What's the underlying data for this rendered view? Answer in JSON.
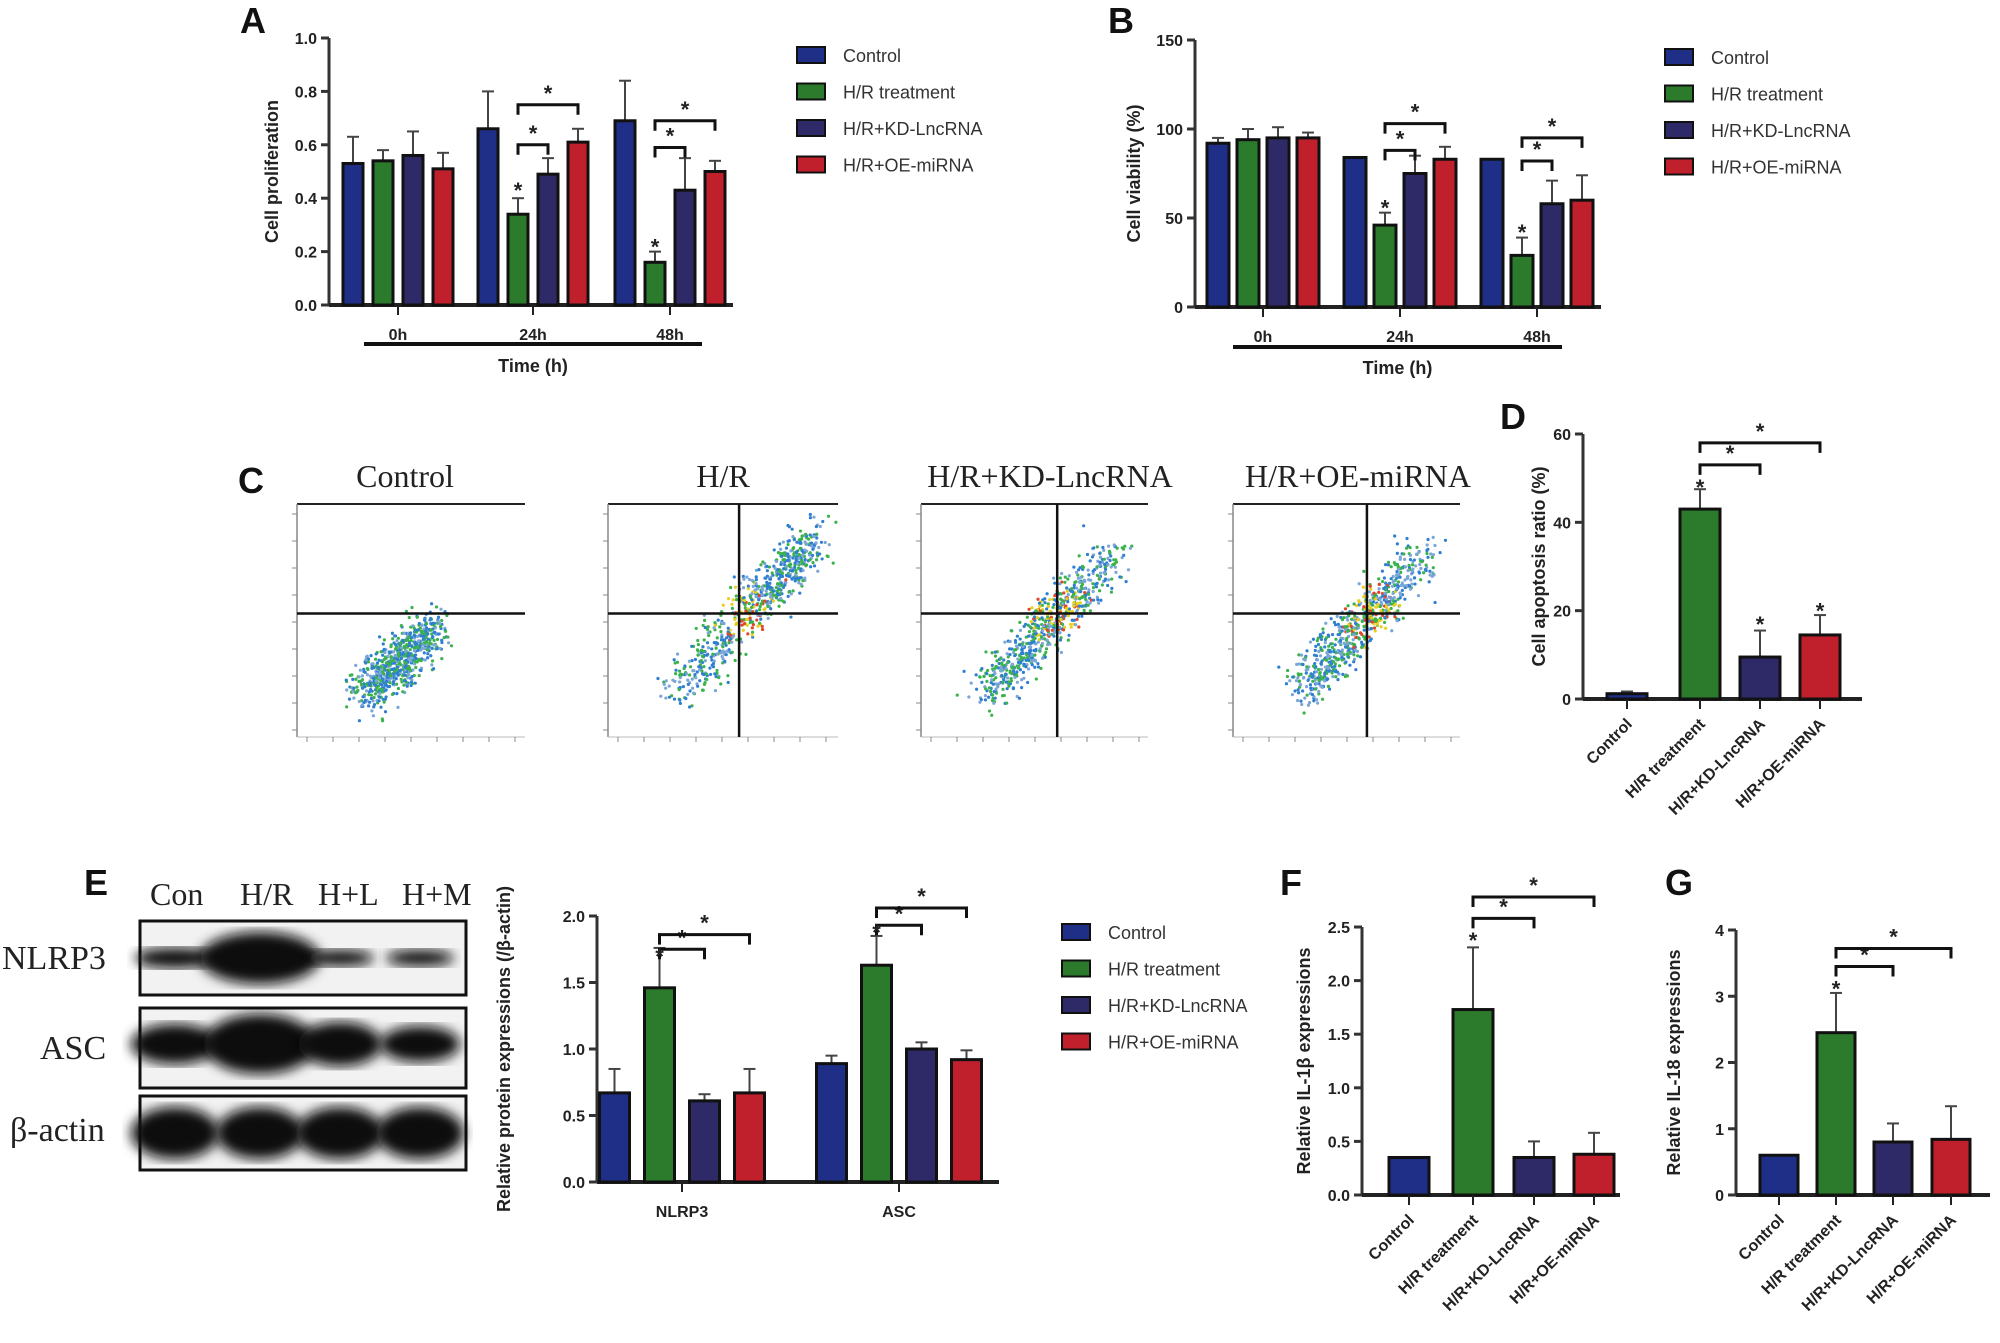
{
  "panel_labels": {
    "A": "A",
    "B": "B",
    "C": "C",
    "D": "D",
    "E": "E",
    "F": "F",
    "G": "G"
  },
  "colors": {
    "Control": "#1f2e86",
    "H/R treatment": "#2c7a2c",
    "H/R+KD-LncRNA": "#2e2a68",
    "H/R+OE-miRNA": "#c01f2c"
  },
  "flow": {
    "titles": [
      "Control",
      "H/R",
      "H/R+KD-LncRNA",
      "H/R+OE-miRNA"
    ]
  },
  "blot": {
    "lanes": [
      "Con",
      "H/R",
      "H+L",
      "H+M"
    ],
    "rows": [
      "NLRP3",
      "ASC",
      "β-actin"
    ]
  },
  "chart_data": [
    {
      "id": "A",
      "type": "bar",
      "categories": [
        "0h",
        "24h",
        "48h"
      ],
      "xlabel": "Time (h)",
      "ylabel": "Cell proliferation",
      "ylim": [
        0,
        1.0
      ],
      "yticks": [
        "0.0",
        "0.2",
        "0.4",
        "0.6",
        "0.8",
        "1.0"
      ],
      "ytick_values": [
        0,
        0.2,
        0.4,
        0.6,
        0.8,
        1.0
      ],
      "legend": "right",
      "series": [
        {
          "name": "Control",
          "values": [
            0.53,
            0.66,
            0.69
          ],
          "errors": [
            0.1,
            0.14,
            0.15
          ]
        },
        {
          "name": "H/R treatment",
          "values": [
            0.54,
            0.34,
            0.16
          ],
          "errors": [
            0.04,
            0.06,
            0.04
          ]
        },
        {
          "name": "H/R+KD-LncRNA",
          "values": [
            0.56,
            0.49,
            0.43
          ],
          "errors": [
            0.09,
            0.06,
            0.12
          ]
        },
        {
          "name": "H/R+OE-miRNA",
          "values": [
            0.51,
            0.61,
            0.5
          ],
          "errors": [
            0.06,
            0.05,
            0.04
          ]
        }
      ],
      "brackets": [
        {
          "group": 1,
          "from": 1,
          "to": 2,
          "y": 0.6,
          "label": "*"
        },
        {
          "group": 1,
          "from": 1,
          "to": 3,
          "y": 0.75,
          "label": "*"
        },
        {
          "group": 2,
          "from": 1,
          "to": 2,
          "y": 0.59,
          "label": "*"
        },
        {
          "group": 2,
          "from": 1,
          "to": 3,
          "y": 0.69,
          "label": "*"
        }
      ],
      "stars": [
        {
          "group": 1,
          "bar": 1,
          "y": 0.43,
          "label": "*"
        },
        {
          "group": 2,
          "bar": 1,
          "y": 0.22,
          "label": "*"
        }
      ]
    },
    {
      "id": "B",
      "type": "bar",
      "categories": [
        "0h",
        "24h",
        "48h"
      ],
      "xlabel": "Time (h)",
      "ylabel": "Cell viability (%)",
      "ylim": [
        0,
        150
      ],
      "yticks": [
        "0",
        "50",
        "100",
        "150"
      ],
      "ytick_values": [
        0,
        50,
        100,
        150
      ],
      "legend": "right",
      "series": [
        {
          "name": "Control",
          "values": [
            92,
            84,
            83
          ],
          "errors": [
            3,
            0,
            0
          ]
        },
        {
          "name": "H/R treatment",
          "values": [
            94,
            46,
            29
          ],
          "errors": [
            6,
            7,
            10
          ]
        },
        {
          "name": "H/R+KD-LncRNA",
          "values": [
            95,
            75,
            58
          ],
          "errors": [
            6,
            10,
            13
          ]
        },
        {
          "name": "H/R+OE-miRNA",
          "values": [
            95,
            83,
            60
          ],
          "errors": [
            3,
            7,
            14
          ]
        }
      ],
      "brackets": [
        {
          "group": 1,
          "from": 1,
          "to": 2,
          "y": 88,
          "label": "*"
        },
        {
          "group": 1,
          "from": 1,
          "to": 3,
          "y": 103,
          "label": "*"
        },
        {
          "group": 2,
          "from": 1,
          "to": 2,
          "y": 82,
          "label": "*"
        },
        {
          "group": 2,
          "from": 1,
          "to": 3,
          "y": 95,
          "label": "*"
        }
      ],
      "stars": [
        {
          "group": 1,
          "bar": 1,
          "y": 56,
          "label": "*"
        },
        {
          "group": 2,
          "bar": 1,
          "y": 42,
          "label": "*"
        }
      ]
    },
    {
      "id": "D",
      "type": "bar",
      "categories": [
        "Control",
        "H/R treatment",
        "H/R+KD-LncRNA",
        "H/R+OE-miRNA"
      ],
      "xlabel": "",
      "ylabel": "Cell apoptosis ratio (%)",
      "ylim": [
        0,
        60
      ],
      "yticks": [
        "0",
        "20",
        "40",
        "60"
      ],
      "ytick_values": [
        0,
        20,
        40,
        60
      ],
      "values": [
        1.2,
        43,
        9.5,
        14.5
      ],
      "errors": [
        0.5,
        4.5,
        6,
        4.5
      ],
      "brackets": [
        {
          "from": 1,
          "to": 2,
          "y": 53,
          "label": "*"
        },
        {
          "from": 1,
          "to": 3,
          "y": 58,
          "label": "*"
        }
      ],
      "stars": [
        {
          "bar": 1,
          "y": 48,
          "label": "*"
        },
        {
          "bar": 2,
          "y": 17,
          "label": "*"
        },
        {
          "bar": 3,
          "y": 20,
          "label": "*"
        }
      ]
    },
    {
      "id": "E",
      "type": "bar",
      "categories": [
        "NLRP3",
        "ASC"
      ],
      "xlabel": "",
      "ylabel": "Relative protein expressions (/β-actin)",
      "ylim": [
        0,
        2.0
      ],
      "yticks": [
        "0.0",
        "0.5",
        "1.0",
        "1.5",
        "2.0"
      ],
      "ytick_values": [
        0,
        0.5,
        1.0,
        1.5,
        2.0
      ],
      "legend": "right",
      "series": [
        {
          "name": "Control",
          "values": [
            0.67,
            0.89
          ],
          "errors": [
            0.18,
            0.06
          ]
        },
        {
          "name": "H/R treatment",
          "values": [
            1.46,
            1.63
          ],
          "errors": [
            0.3,
            0.22
          ]
        },
        {
          "name": "H/R+KD-LncRNA",
          "values": [
            0.61,
            1.0
          ],
          "errors": [
            0.05,
            0.05
          ]
        },
        {
          "name": "H/R+OE-miRNA",
          "values": [
            0.67,
            0.92
          ],
          "errors": [
            0.18,
            0.07
          ]
        }
      ],
      "brackets": [
        {
          "group": 0,
          "from": 1,
          "to": 2,
          "y": 1.75,
          "label": "*"
        },
        {
          "group": 0,
          "from": 1,
          "to": 3,
          "y": 1.86,
          "label": "*"
        },
        {
          "group": 1,
          "from": 1,
          "to": 2,
          "y": 1.93,
          "label": "*"
        },
        {
          "group": 1,
          "from": 1,
          "to": 3,
          "y": 2.06,
          "label": "*"
        }
      ],
      "stars": [
        {
          "group": 0,
          "bar": 1,
          "y": 1.7,
          "label": "*"
        },
        {
          "group": 1,
          "bar": 1,
          "y": 1.88,
          "label": "*"
        }
      ]
    },
    {
      "id": "F",
      "type": "bar",
      "categories": [
        "Control",
        "H/R treatment",
        "H/R+KD-LncRNA",
        "H/R+OE-miRNA"
      ],
      "xlabel": "",
      "ylabel": "Relative IL-1β expressions",
      "ylim": [
        0,
        2.5
      ],
      "yticks": [
        "0.0",
        "0.5",
        "1.0",
        "1.5",
        "2.0",
        "2.5"
      ],
      "ytick_values": [
        0,
        0.5,
        1.0,
        1.5,
        2.0,
        2.5
      ],
      "values": [
        0.35,
        1.73,
        0.35,
        0.38
      ],
      "errors": [
        0,
        0.58,
        0.15,
        0.2
      ],
      "brackets": [
        {
          "from": 1,
          "to": 2,
          "y": 2.58,
          "label": "*"
        },
        {
          "from": 1,
          "to": 3,
          "y": 2.78,
          "label": "*"
        }
      ],
      "stars": [
        {
          "bar": 1,
          "y": 2.38,
          "label": "*"
        }
      ]
    },
    {
      "id": "G",
      "type": "bar",
      "categories": [
        "Control",
        "H/R treatment",
        "H/R+KD-LncRNA",
        "H/R+OE-miRNA"
      ],
      "xlabel": "",
      "ylabel": "Relative IL-18 expressions",
      "ylim": [
        0,
        4
      ],
      "yticks": [
        "0",
        "1",
        "2",
        "3",
        "4"
      ],
      "ytick_values": [
        0,
        1,
        2,
        3,
        4
      ],
      "values": [
        0.6,
        2.45,
        0.8,
        0.84
      ],
      "errors": [
        0,
        0.6,
        0.28,
        0.5
      ],
      "brackets": [
        {
          "from": 1,
          "to": 2,
          "y": 3.45,
          "label": "*"
        },
        {
          "from": 1,
          "to": 3,
          "y": 3.72,
          "label": "*"
        }
      ],
      "stars": [
        {
          "bar": 1,
          "y": 3.12,
          "label": "*"
        }
      ]
    }
  ]
}
